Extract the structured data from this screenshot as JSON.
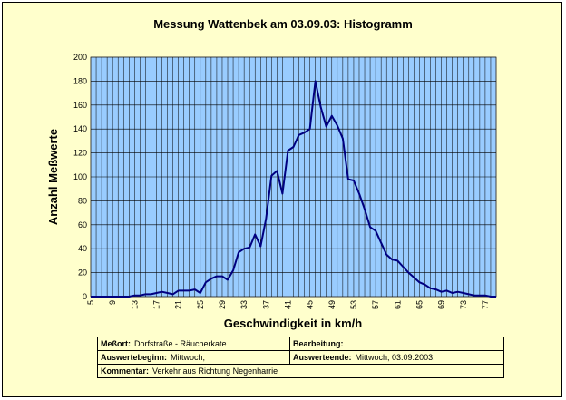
{
  "info": {
    "messort_label": "Meßort:",
    "messort_value": "Dorfstraße - Räucherkate",
    "bearbeitung_label": "Bearbeitung:",
    "bearbeitung_value": "",
    "beginn_label": "Auswertebeginn:",
    "beginn_value": "Mittwoch,",
    "ende_label": "Auswerteende:",
    "ende_value": "Mittwoch, 03.09.2003,",
    "kommentar_label": "Kommentar:",
    "kommentar_value": "Verkehr aus Richtung Negenharrie"
  },
  "colors": {
    "background": "#ffffcc",
    "plot_area": "#99ccff",
    "line": "#000080",
    "grid": "#000000"
  },
  "chart_data": {
    "type": "line",
    "title": "Messung Wattenbek am 03.09.03: Histogramm",
    "xlabel": "Geschwindigkeit in km/h",
    "ylabel": "Anzahl Meßwerte",
    "ylim": [
      0,
      200
    ],
    "yticks": [
      0,
      20,
      40,
      60,
      80,
      100,
      120,
      140,
      160,
      180,
      200
    ],
    "xlim": [
      5,
      79
    ],
    "xticks": [
      5,
      9,
      13,
      17,
      21,
      25,
      29,
      33,
      37,
      41,
      45,
      49,
      53,
      57,
      61,
      65,
      69,
      73,
      77
    ],
    "grid": true,
    "legend": "none",
    "series": [
      {
        "x": [
          5,
          6,
          7,
          8,
          9,
          10,
          11,
          12,
          13,
          14,
          15,
          16,
          17,
          18,
          19,
          20,
          21,
          22,
          23,
          24,
          25,
          26,
          27,
          28,
          29,
          30,
          31,
          32,
          33,
          34,
          35,
          36,
          37,
          38,
          39,
          40,
          41,
          42,
          43,
          44,
          45,
          46,
          47,
          48,
          49,
          50,
          51,
          52,
          53,
          54,
          55,
          56,
          57,
          58,
          59,
          60,
          61,
          62,
          63,
          64,
          65,
          66,
          67,
          68,
          69,
          70,
          71,
          72,
          73,
          74,
          75,
          76,
          77,
          78,
          79
        ],
        "values": [
          0,
          0,
          0,
          0,
          0,
          0,
          0,
          0,
          1,
          1,
          2,
          2,
          3,
          4,
          3,
          2,
          5,
          5,
          5,
          6,
          3,
          12,
          15,
          17,
          17,
          14,
          22,
          37,
          40,
          41,
          52,
          42,
          65,
          101,
          105,
          86,
          122,
          125,
          135,
          137,
          140,
          180,
          158,
          142,
          151,
          143,
          132,
          98,
          97,
          86,
          73,
          58,
          55,
          45,
          35,
          31,
          30,
          25,
          20,
          16,
          12,
          10,
          7,
          6,
          4,
          5,
          3,
          4,
          3,
          2,
          1,
          1,
          1,
          0,
          0
        ]
      }
    ]
  }
}
